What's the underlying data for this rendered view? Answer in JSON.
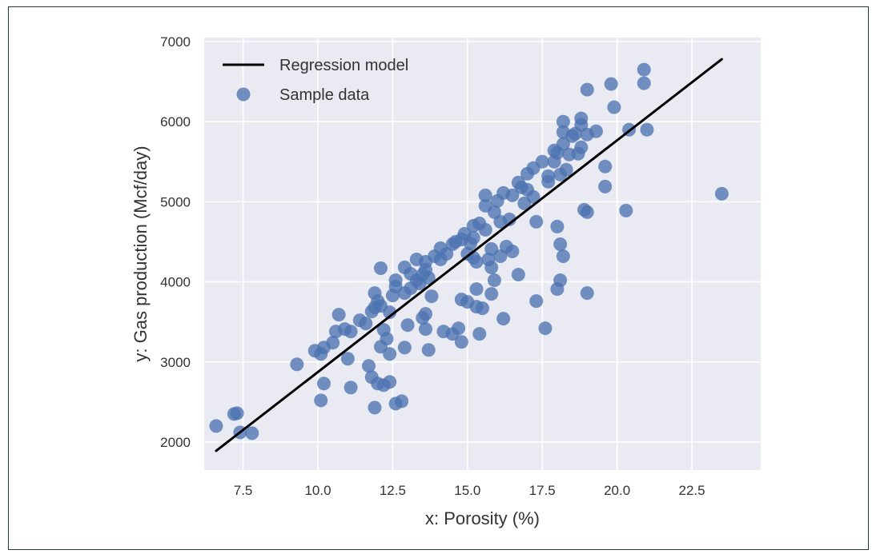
{
  "chart_data": {
    "type": "scatter",
    "xlabel": "x: Porosity (%)",
    "ylabel": "y: Gas production (Mcf/day)",
    "xlim": [
      6.2,
      24.8
    ],
    "ylim": [
      1650,
      7050
    ],
    "xticks": [
      7.5,
      10.0,
      12.5,
      15.0,
      17.5,
      20.0,
      22.5
    ],
    "xtick_labels": [
      "7.5",
      "10.0",
      "12.5",
      "15.0",
      "17.5",
      "20.0",
      "22.5"
    ],
    "yticks": [
      2000,
      3000,
      4000,
      5000,
      6000,
      7000
    ],
    "ytick_labels": [
      "2000",
      "3000",
      "4000",
      "5000",
      "6000",
      "7000"
    ],
    "grid": true,
    "legend_position": "top-left",
    "colors": {
      "plot_background": "#eaeaf2",
      "grid": "#ffffff",
      "regression_line": "#000000",
      "points": "#4c72b0"
    },
    "series": [
      {
        "name": "Regression model",
        "type": "line",
        "x": [
          6.6,
          23.5
        ],
        "y": [
          1890,
          6780
        ]
      },
      {
        "name": "Sample data",
        "type": "scatter",
        "points": [
          [
            6.6,
            2200
          ],
          [
            7.2,
            2350
          ],
          [
            7.3,
            2360
          ],
          [
            7.4,
            2120
          ],
          [
            7.8,
            2110
          ],
          [
            9.3,
            2970
          ],
          [
            9.9,
            3140
          ],
          [
            10.1,
            3100
          ],
          [
            10.1,
            2520
          ],
          [
            10.2,
            3180
          ],
          [
            10.2,
            2730
          ],
          [
            10.5,
            3240
          ],
          [
            10.6,
            3380
          ],
          [
            10.7,
            3590
          ],
          [
            10.9,
            3410
          ],
          [
            11.0,
            3040
          ],
          [
            11.1,
            2680
          ],
          [
            11.1,
            3380
          ],
          [
            11.4,
            3520
          ],
          [
            11.6,
            3480
          ],
          [
            11.7,
            2950
          ],
          [
            11.8,
            3630
          ],
          [
            11.8,
            2810
          ],
          [
            11.9,
            3680
          ],
          [
            11.9,
            2430
          ],
          [
            11.9,
            3860
          ],
          [
            12.0,
            3760
          ],
          [
            12.0,
            2730
          ],
          [
            12.1,
            3700
          ],
          [
            12.1,
            3190
          ],
          [
            12.1,
            4170
          ],
          [
            12.2,
            3400
          ],
          [
            12.2,
            2710
          ],
          [
            12.3,
            3290
          ],
          [
            12.4,
            2750
          ],
          [
            12.4,
            3100
          ],
          [
            12.4,
            3620
          ],
          [
            12.5,
            3830
          ],
          [
            12.6,
            3940
          ],
          [
            12.6,
            4020
          ],
          [
            12.6,
            2480
          ],
          [
            12.8,
            2510
          ],
          [
            12.9,
            3180
          ],
          [
            12.9,
            3860
          ],
          [
            12.9,
            4180
          ],
          [
            13.0,
            3460
          ],
          [
            13.1,
            4100
          ],
          [
            13.1,
            3920
          ],
          [
            13.3,
            4280
          ],
          [
            13.3,
            4020
          ],
          [
            13.4,
            3980
          ],
          [
            13.5,
            4090
          ],
          [
            13.5,
            3550
          ],
          [
            13.6,
            3410
          ],
          [
            13.6,
            3600
          ],
          [
            13.6,
            4150
          ],
          [
            13.6,
            4250
          ],
          [
            13.7,
            3150
          ],
          [
            13.7,
            4050
          ],
          [
            13.8,
            3820
          ],
          [
            13.9,
            4320
          ],
          [
            14.1,
            4280
          ],
          [
            14.1,
            4420
          ],
          [
            14.2,
            3380
          ],
          [
            14.3,
            4350
          ],
          [
            14.5,
            3350
          ],
          [
            14.5,
            4470
          ],
          [
            14.6,
            4500
          ],
          [
            14.7,
            3420
          ],
          [
            14.8,
            3250
          ],
          [
            14.8,
            4530
          ],
          [
            14.8,
            3780
          ],
          [
            14.9,
            4600
          ],
          [
            15.0,
            4350
          ],
          [
            15.0,
            3750
          ],
          [
            15.1,
            4480
          ],
          [
            15.2,
            4550
          ],
          [
            15.2,
            4700
          ],
          [
            15.2,
            4300
          ],
          [
            15.3,
            3690
          ],
          [
            15.3,
            3910
          ],
          [
            15.3,
            4250
          ],
          [
            15.4,
            4730
          ],
          [
            15.4,
            3350
          ],
          [
            15.5,
            3670
          ],
          [
            15.6,
            4950
          ],
          [
            15.6,
            5080
          ],
          [
            15.6,
            4650
          ],
          [
            15.7,
            4280
          ],
          [
            15.8,
            3850
          ],
          [
            15.8,
            4410
          ],
          [
            15.8,
            4180
          ],
          [
            15.9,
            4020
          ],
          [
            15.9,
            4870
          ],
          [
            16.0,
            5010
          ],
          [
            16.1,
            4750
          ],
          [
            16.1,
            4320
          ],
          [
            16.2,
            3540
          ],
          [
            16.2,
            5110
          ],
          [
            16.3,
            4440
          ],
          [
            16.4,
            4780
          ],
          [
            16.5,
            5080
          ],
          [
            16.5,
            4380
          ],
          [
            16.7,
            4090
          ],
          [
            16.7,
            5240
          ],
          [
            16.8,
            5180
          ],
          [
            16.9,
            4980
          ],
          [
            17.0,
            5350
          ],
          [
            17.0,
            5150
          ],
          [
            17.2,
            5420
          ],
          [
            17.2,
            5060
          ],
          [
            17.3,
            4750
          ],
          [
            17.3,
            3760
          ],
          [
            17.5,
            5500
          ],
          [
            17.6,
            3420
          ],
          [
            17.7,
            5250
          ],
          [
            17.7,
            5320
          ],
          [
            17.9,
            5500
          ],
          [
            17.9,
            5640
          ],
          [
            18.0,
            5610
          ],
          [
            18.0,
            3910
          ],
          [
            18.0,
            4690
          ],
          [
            18.1,
            4020
          ],
          [
            18.1,
            4470
          ],
          [
            18.1,
            5340
          ],
          [
            18.2,
            4320
          ],
          [
            18.2,
            5720
          ],
          [
            18.2,
            5870
          ],
          [
            18.2,
            6000
          ],
          [
            18.3,
            5400
          ],
          [
            18.4,
            5590
          ],
          [
            18.5,
            5820
          ],
          [
            18.6,
            5850
          ],
          [
            18.7,
            5600
          ],
          [
            18.8,
            6040
          ],
          [
            18.8,
            5960
          ],
          [
            18.8,
            5680
          ],
          [
            18.9,
            4900
          ],
          [
            19.0,
            6400
          ],
          [
            19.0,
            5840
          ],
          [
            19.0,
            4870
          ],
          [
            19.0,
            3860
          ],
          [
            19.3,
            5880
          ],
          [
            19.6,
            5440
          ],
          [
            19.6,
            5190
          ],
          [
            19.8,
            6470
          ],
          [
            19.9,
            6180
          ],
          [
            20.3,
            4890
          ],
          [
            20.4,
            5900
          ],
          [
            20.9,
            6480
          ],
          [
            20.9,
            6650
          ],
          [
            21.0,
            5900
          ],
          [
            23.5,
            5100
          ]
        ]
      }
    ]
  }
}
